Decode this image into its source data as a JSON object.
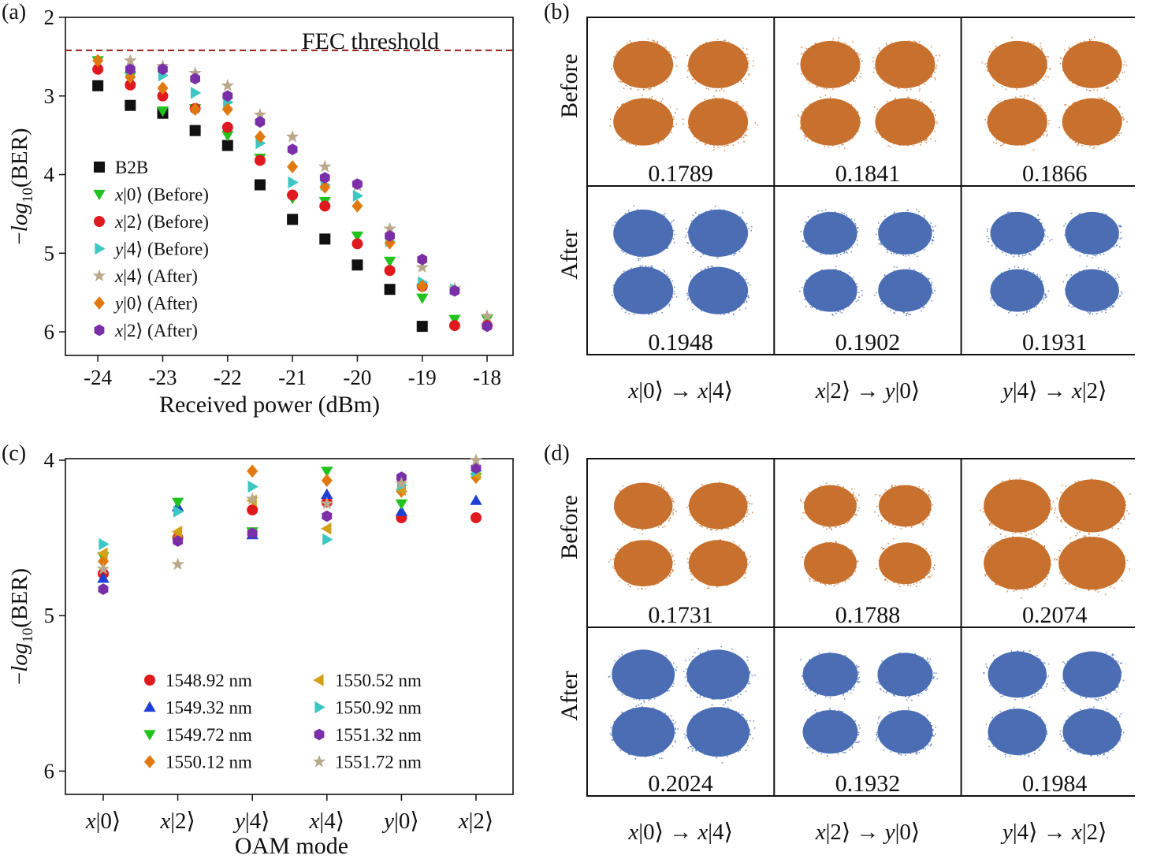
{
  "colors": {
    "orange": "#c8702d",
    "blue": "#4a6db3",
    "fec": "#9a1c1c",
    "marker_black": "#111111",
    "marker_green": "#22c21e",
    "marker_red": "#e0191f",
    "marker_cyan": "#3cc7c3",
    "marker_tan": "#b9a98a",
    "marker_orange": "#e07a10",
    "marker_purple": "#7a2ea8",
    "marker_blue": "#1f3fd6",
    "marker_gold": "#d4a017"
  },
  "panels": {
    "a": "(a)",
    "b": "(b)",
    "c": "(c)",
    "d": "(d)"
  },
  "chart_data": [
    {
      "id": "a",
      "type": "scatter",
      "xlabel": "Received power (dBm)",
      "ylabel": "−log10(BER)",
      "xlim": [
        -24.5,
        -17.6
      ],
      "ylim": [
        2.0,
        6.3
      ],
      "y_inverted": true,
      "xticks": [
        -24,
        -23,
        -22,
        -21,
        -20,
        -19,
        -18
      ],
      "xtick_labels": [
        "-24",
        "-23",
        "-22",
        "-21",
        "-20",
        "-19",
        "-18"
      ],
      "yticks": [
        2,
        3,
        4,
        5,
        6
      ],
      "ytick_labels": [
        "2",
        "3",
        "4",
        "5",
        "6"
      ],
      "fec_threshold": 2.42,
      "fec_label": "FEC threshold",
      "series": [
        {
          "name": "B2B",
          "marker": "square",
          "color": "#111111",
          "x": [
            -24,
            -23.5,
            -23,
            -22.5,
            -22,
            -21.5,
            -21,
            -20.5,
            -20,
            -19.5,
            -19
          ],
          "y": [
            2.87,
            3.12,
            3.22,
            3.44,
            3.63,
            4.13,
            4.57,
            4.82,
            5.15,
            5.46,
            5.93
          ]
        },
        {
          "name": "x|0⟩ (Before)",
          "marker": "tri-down",
          "color": "#22c21e",
          "x": [
            -24,
            -23.5,
            -23,
            -22.5,
            -22,
            -21.5,
            -21,
            -20.5,
            -20,
            -19.5,
            -19,
            -18.5,
            -18
          ],
          "y": [
            2.55,
            2.75,
            3.19,
            3.16,
            3.5,
            3.79,
            4.3,
            4.34,
            4.78,
            5.1,
            5.57,
            5.84,
            5.84
          ]
        },
        {
          "name": "x|2⟩ (Before)",
          "marker": "circle",
          "color": "#e0191f",
          "x": [
            -24,
            -23.5,
            -23,
            -22.5,
            -22,
            -21.5,
            -21,
            -20.5,
            -20,
            -19.5,
            -19,
            -18.5,
            -18
          ],
          "y": [
            2.66,
            2.86,
            3.0,
            3.16,
            3.4,
            3.82,
            4.26,
            4.4,
            4.88,
            5.22,
            5.42,
            5.92,
            5.92
          ]
        },
        {
          "name": "y|4⟩ (Before)",
          "marker": "tri-right",
          "color": "#3cc7c3",
          "x": [
            -23.5,
            -23,
            -22.5,
            -22,
            -21.5,
            -21,
            -20.5,
            -20,
            -19.5,
            -19,
            -18.5
          ],
          "y": [
            2.69,
            2.74,
            2.96,
            3.08,
            3.6,
            4.1,
            4.13,
            4.27,
            4.85,
            5.37,
            5.46
          ]
        },
        {
          "name": "x|4⟩ (After)",
          "marker": "star",
          "color": "#b9a98a",
          "x": [
            -23.5,
            -23,
            -22.5,
            -22,
            -21.5,
            -21,
            -20.5,
            -20,
            -19.5,
            -19,
            -18.5,
            -18
          ],
          "y": [
            2.55,
            2.62,
            2.71,
            2.87,
            3.24,
            3.52,
            3.9,
            4.14,
            4.69,
            5.18,
            5.45,
            5.8
          ]
        },
        {
          "name": "y|0⟩ (After)",
          "marker": "diamond",
          "color": "#e07a10",
          "x": [
            -24,
            -23.5,
            -23,
            -22.5,
            -22,
            -21.5,
            -21,
            -20.5,
            -20,
            -19.5,
            -19
          ],
          "y": [
            2.55,
            2.76,
            2.9,
            3.17,
            3.17,
            3.52,
            3.9,
            4.16,
            4.4,
            4.87,
            5.42
          ]
        },
        {
          "name": "x|2⟩ (After)",
          "marker": "hexagon",
          "color": "#7a2ea8",
          "x": [
            -23.5,
            -23,
            -22.5,
            -22,
            -21.5,
            -21,
            -20.5,
            -20,
            -19.5,
            -19,
            -18.5,
            -18
          ],
          "y": [
            2.66,
            2.66,
            2.78,
            3.0,
            3.33,
            3.68,
            4.04,
            4.12,
            4.78,
            5.08,
            5.48,
            5.93
          ]
        }
      ],
      "legend": [
        {
          "label": "B2B"
        },
        {
          "label": "x|0⟩ (Before)"
        },
        {
          "label": "x|2⟩ (Before)"
        },
        {
          "label": "y|4⟩ (Before)"
        },
        {
          "label": "x|4⟩ (After)"
        },
        {
          "label": "y|0⟩ (After)"
        },
        {
          "label": "x|2⟩ (After)"
        }
      ]
    },
    {
      "id": "c",
      "type": "scatter",
      "xlabel": "OAM mode",
      "ylabel": "−log10(BER)",
      "categories": [
        "x|0⟩",
        "x|2⟩",
        "y|4⟩",
        "x|4⟩",
        "y|0⟩",
        "x|2⟩"
      ],
      "ylim": [
        3.99,
        6.15
      ],
      "y_inverted": true,
      "yticks": [
        4,
        5,
        6
      ],
      "ytick_labels": [
        "4",
        "5",
        "6"
      ],
      "series": [
        {
          "name": "1548.92 nm",
          "marker": "circle",
          "color": "#e0191f",
          "values": [
            4.73,
            4.5,
            4.32,
            4.27,
            4.37,
            4.37
          ]
        },
        {
          "name": "1549.32 nm",
          "marker": "tri-up",
          "color": "#1f3fd6",
          "values": [
            4.76,
            4.3,
            4.48,
            4.22,
            4.33,
            4.26
          ]
        },
        {
          "name": "1549.72 nm",
          "marker": "tri-down",
          "color": "#22c21e",
          "values": [
            4.62,
            4.27,
            4.46,
            4.07,
            4.28,
            4.11
          ]
        },
        {
          "name": "1550.12 nm",
          "marker": "diamond",
          "color": "#e07a10",
          "values": [
            4.65,
            4.5,
            4.07,
            4.13,
            4.2,
            4.11
          ]
        },
        {
          "name": "1550.52 nm",
          "marker": "tri-left",
          "color": "#d4a017",
          "values": [
            4.6,
            4.46,
            4.26,
            4.44,
            4.19,
            4.09
          ]
        },
        {
          "name": "1550.92 nm",
          "marker": "tri-right",
          "color": "#3cc7c3",
          "values": [
            4.54,
            4.33,
            4.17,
            4.51,
            4.16,
            4.07
          ]
        },
        {
          "name": "1551.32 nm",
          "marker": "hexagon",
          "color": "#7a2ea8",
          "values": [
            4.83,
            4.52,
            4.47,
            4.36,
            4.11,
            4.05
          ]
        },
        {
          "name": "1551.72 nm",
          "marker": "star",
          "color": "#b9a98a",
          "values": [
            4.7,
            4.67,
            4.25,
            4.28,
            4.15,
            4.0
          ]
        }
      ]
    },
    {
      "id": "b",
      "type": "table",
      "rows": [
        "Before",
        "After"
      ],
      "columns": [
        "x|0⟩ → x|4⟩",
        "x|2⟩ → y|0⟩",
        "y|4⟩ → x|2⟩"
      ],
      "values": [
        [
          "0.1789",
          "0.1841",
          "0.1866"
        ],
        [
          "0.1948",
          "0.1902",
          "0.1931"
        ]
      ]
    },
    {
      "id": "d",
      "type": "table",
      "rows": [
        "Before",
        "After"
      ],
      "columns": [
        "x|0⟩ → x|4⟩",
        "x|2⟩ → y|0⟩",
        "y|4⟩ → x|2⟩"
      ],
      "values": [
        [
          "0.1731",
          "0.1788",
          "0.2074"
        ],
        [
          "0.2024",
          "0.1932",
          "0.1984"
        ]
      ]
    }
  ]
}
